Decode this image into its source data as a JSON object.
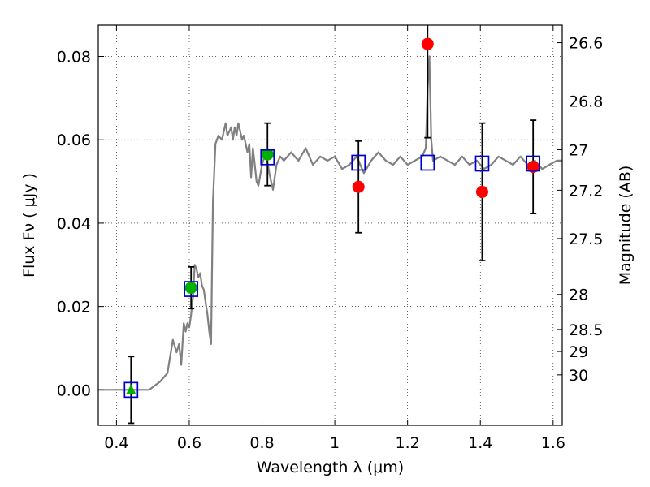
{
  "chart_data": {
    "type": "scatter",
    "xlabel": "Wavelength  λ (μm)",
    "ylabel": "Flux  Fν  ( μJy )",
    "ylabel_right": "Magnitude (AB)",
    "xlim": [
      0.35,
      1.625
    ],
    "ylim": [
      -0.0085,
      0.0875
    ],
    "x_ticks": [
      0.4,
      0.6,
      0.8,
      1.0,
      1.2,
      1.4,
      1.6
    ],
    "x_tick_labels": [
      "0.4",
      "0.6",
      "0.8",
      "1",
      "1.2",
      "1.4",
      "1.6"
    ],
    "y_ticks": [
      0.0,
      0.02,
      0.04,
      0.06,
      0.08
    ],
    "y_tick_labels": [
      "0.00",
      "0.02",
      "0.04",
      "0.06",
      "0.08"
    ],
    "mag_ticks": [
      {
        "label": "26.6",
        "flux": 0.0833
      },
      {
        "label": "26.8",
        "flux": 0.0693
      },
      {
        "label": "27",
        "flux": 0.0576
      },
      {
        "label": "27.2",
        "flux": 0.0479
      },
      {
        "label": "27.5",
        "flux": 0.0363
      },
      {
        "label": "28",
        "flux": 0.0229
      },
      {
        "label": "28.5",
        "flux": 0.0145
      },
      {
        "label": "29",
        "flux": 0.0092
      },
      {
        "label": "30",
        "flux": 0.0036
      }
    ],
    "grid": true,
    "colors": {
      "model": "#808080",
      "observed": "#ff0000",
      "green": "#00b000",
      "square": "#0000cc",
      "errorbar": "#000000"
    },
    "series": [
      {
        "name": "model_sed",
        "style": "line",
        "x": [
          0.35,
          0.49,
          0.52,
          0.54,
          0.555,
          0.565,
          0.572,
          0.578,
          0.585,
          0.59,
          0.595,
          0.6,
          0.605,
          0.61,
          0.615,
          0.62,
          0.625,
          0.63,
          0.635,
          0.64,
          0.645,
          0.65,
          0.655,
          0.66,
          0.665,
          0.672,
          0.68,
          0.69,
          0.7,
          0.705,
          0.71,
          0.715,
          0.72,
          0.725,
          0.73,
          0.735,
          0.74,
          0.745,
          0.75,
          0.755,
          0.76,
          0.765,
          0.77,
          0.775,
          0.78,
          0.785,
          0.79,
          0.8,
          0.81,
          0.82,
          0.83,
          0.84,
          0.85,
          0.86,
          0.88,
          0.9,
          0.92,
          0.94,
          0.96,
          0.98,
          1.0,
          1.02,
          1.04,
          1.06,
          1.08,
          1.1,
          1.12,
          1.14,
          1.16,
          1.18,
          1.2,
          1.22,
          1.24,
          1.25,
          1.255,
          1.26,
          1.265,
          1.27,
          1.29,
          1.31,
          1.33,
          1.35,
          1.37,
          1.39,
          1.41,
          1.43,
          1.45,
          1.47,
          1.49,
          1.51,
          1.53,
          1.55,
          1.57,
          1.59,
          1.61,
          1.625
        ],
        "y": [
          0.0,
          0.0,
          0.002,
          0.004,
          0.012,
          0.009,
          0.011,
          0.006,
          0.016,
          0.014,
          0.016,
          0.015,
          0.018,
          0.022,
          0.03,
          0.029,
          0.027,
          0.028,
          0.025,
          0.024,
          0.021,
          0.018,
          0.014,
          0.011,
          0.045,
          0.059,
          0.061,
          0.06,
          0.064,
          0.061,
          0.062,
          0.063,
          0.06,
          0.063,
          0.061,
          0.064,
          0.062,
          0.06,
          0.061,
          0.059,
          0.057,
          0.059,
          0.051,
          0.058,
          0.054,
          0.05,
          0.049,
          0.054,
          0.057,
          0.052,
          0.048,
          0.054,
          0.056,
          0.055,
          0.057,
          0.055,
          0.058,
          0.054,
          0.056,
          0.055,
          0.056,
          0.053,
          0.054,
          0.056,
          0.052,
          0.055,
          0.057,
          0.055,
          0.054,
          0.056,
          0.054,
          0.055,
          0.056,
          0.058,
          0.072,
          0.08,
          0.06,
          0.055,
          0.056,
          0.055,
          0.054,
          0.056,
          0.054,
          0.055,
          0.053,
          0.054,
          0.056,
          0.055,
          0.054,
          0.056,
          0.054,
          0.055,
          0.053,
          0.054,
          0.055,
          0.055
        ]
      },
      {
        "name": "observed",
        "style": "points",
        "points": [
          {
            "x": 0.44,
            "y": 0.0,
            "err": 0.008,
            "marker": "triangle",
            "color": "green"
          },
          {
            "x": 0.605,
            "y": 0.0245,
            "err": 0.005,
            "marker": "circle",
            "color": "green"
          },
          {
            "x": 0.815,
            "y": 0.0565,
            "err": 0.0075,
            "marker": "circle",
            "color": "green"
          },
          {
            "x": 1.065,
            "y": 0.0487,
            "err": 0.011,
            "marker": "circle",
            "color": "red"
          },
          {
            "x": 1.255,
            "y": 0.083,
            "err": 0.0225,
            "marker": "circle",
            "color": "red"
          },
          {
            "x": 1.405,
            "y": 0.0475,
            "err": 0.0165,
            "marker": "circle",
            "color": "red"
          },
          {
            "x": 1.545,
            "y": 0.0535,
            "err": 0.0112,
            "marker": "circle",
            "color": "red"
          }
        ]
      },
      {
        "name": "model_photometry",
        "style": "squares",
        "x": [
          0.44,
          0.605,
          0.815,
          1.065,
          1.255,
          1.405,
          1.545
        ],
        "y": [
          0.0,
          0.0242,
          0.0558,
          0.0545,
          0.0545,
          0.0543,
          0.0543
        ]
      }
    ]
  }
}
